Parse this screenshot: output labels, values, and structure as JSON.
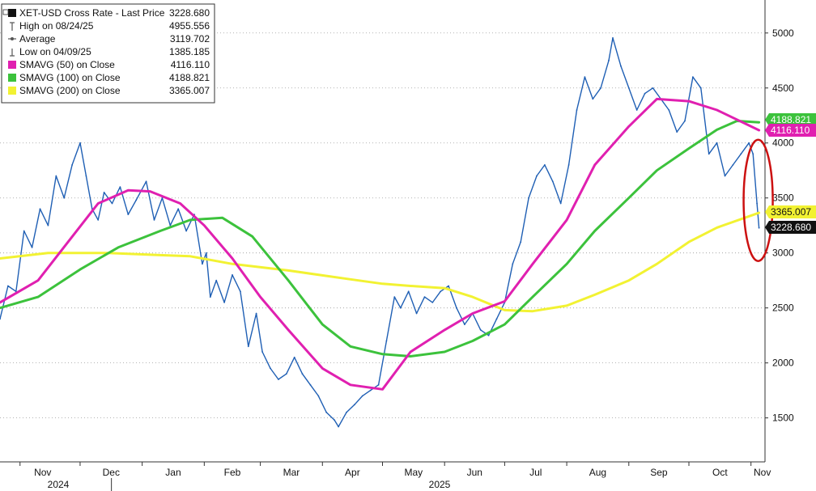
{
  "chart_data": {
    "type": "line",
    "title": "",
    "xlabel": "",
    "ylabel": "",
    "ylim": [
      1100,
      5300
    ],
    "y_ticks": [
      1500,
      2000,
      2500,
      3000,
      3500,
      4000,
      4500,
      5000
    ],
    "y_axis_side": "right",
    "grid": "horizontal dotted",
    "legend_position": "top-left",
    "x_range": [
      "2024-10-22",
      "2025-11-08"
    ],
    "month_ticks": [
      {
        "label": "Nov",
        "date": "2024-11-01"
      },
      {
        "label": "Dec",
        "date": "2024-12-01"
      },
      {
        "label": "Jan",
        "date": "2025-01-01"
      },
      {
        "label": "Feb",
        "date": "2025-02-01"
      },
      {
        "label": "Mar",
        "date": "2025-03-01"
      },
      {
        "label": "Apr",
        "date": "2025-04-01"
      },
      {
        "label": "May",
        "date": "2025-05-01"
      },
      {
        "label": "Jun",
        "date": "2025-06-01"
      },
      {
        "label": "Jul",
        "date": "2025-07-01"
      },
      {
        "label": "Aug",
        "date": "2025-08-01"
      },
      {
        "label": "Sep",
        "date": "2025-09-01"
      },
      {
        "label": "Oct",
        "date": "2025-10-01"
      },
      {
        "label": "Nov",
        "date": "2025-11-01"
      }
    ],
    "years": [
      {
        "label": "2024",
        "date": "2024-11-01"
      },
      {
        "label": "2025",
        "date": "2025-06-01"
      }
    ],
    "legend": [
      {
        "label": "XET-USD Cross Rate - Last Price",
        "value": "3228.680",
        "marker": "square",
        "color": "#111111"
      },
      {
        "label": "High on 08/24/25",
        "value": "4955.556",
        "marker": "high-icon",
        "color": "#555555"
      },
      {
        "label": "Average",
        "value": "3119.702",
        "marker": "average-icon",
        "color": "#555555"
      },
      {
        "label": "Low on 04/09/25",
        "value": "1385.185",
        "marker": "low-icon",
        "color": "#555555"
      },
      {
        "label": "SMAVG (50)  on Close",
        "value": "4116.110",
        "marker": "square",
        "color": "#e020b0"
      },
      {
        "label": "SMAVG (100)  on Close",
        "value": "4188.821",
        "marker": "square",
        "color": "#3cc23c"
      },
      {
        "label": "SMAVG (200)  on Close",
        "value": "3365.007",
        "marker": "square",
        "color": "#f2f232"
      }
    ],
    "value_tags": [
      {
        "value": 4188.821,
        "label": "4188.821",
        "color": "#3cc23c",
        "text_color": "#ffffff"
      },
      {
        "value": 4116.11,
        "label": "4116.110",
        "color": "#e020b0",
        "text_color": "#ffffff"
      },
      {
        "value": 3365.007,
        "label": "3365.007",
        "color": "#f2f232",
        "text_color": "#111111"
      },
      {
        "value": 3228.68,
        "label": "3228.680",
        "color": "#111111",
        "text_color": "#ffffff"
      }
    ],
    "annotation": {
      "type": "ellipse",
      "color": "#cc1111",
      "date": "2025-11-05",
      "y_from": 3000,
      "y_to": 4000
    },
    "series": [
      {
        "name": "XET-USD Cross Rate - Last Price",
        "color": "#1f5fb4",
        "x": [
          "2024-10-22",
          "2024-10-26",
          "2024-10-30",
          "2024-11-03",
          "2024-11-07",
          "2024-11-11",
          "2024-11-15",
          "2024-11-19",
          "2024-11-23",
          "2024-11-27",
          "2024-12-01",
          "2024-12-04",
          "2024-12-07",
          "2024-12-10",
          "2024-12-13",
          "2024-12-17",
          "2024-12-21",
          "2024-12-25",
          "2024-12-29",
          "2025-01-03",
          "2025-01-07",
          "2025-01-11",
          "2025-01-15",
          "2025-01-19",
          "2025-01-23",
          "2025-01-27",
          "2025-01-31",
          "2025-02-02",
          "2025-02-04",
          "2025-02-07",
          "2025-02-11",
          "2025-02-15",
          "2025-02-19",
          "2025-02-23",
          "2025-02-27",
          "2025-03-02",
          "2025-03-06",
          "2025-03-10",
          "2025-03-14",
          "2025-03-18",
          "2025-03-22",
          "2025-03-26",
          "2025-03-30",
          "2025-04-03",
          "2025-04-07",
          "2025-04-09",
          "2025-04-13",
          "2025-04-17",
          "2025-04-21",
          "2025-04-25",
          "2025-04-29",
          "2025-05-03",
          "2025-05-07",
          "2025-05-10",
          "2025-05-14",
          "2025-05-18",
          "2025-05-22",
          "2025-05-26",
          "2025-05-30",
          "2025-06-03",
          "2025-06-07",
          "2025-06-11",
          "2025-06-15",
          "2025-06-19",
          "2025-06-23",
          "2025-06-27",
          "2025-07-01",
          "2025-07-05",
          "2025-07-09",
          "2025-07-13",
          "2025-07-17",
          "2025-07-21",
          "2025-07-25",
          "2025-07-29",
          "2025-08-02",
          "2025-08-06",
          "2025-08-10",
          "2025-08-14",
          "2025-08-18",
          "2025-08-22",
          "2025-08-24",
          "2025-08-28",
          "2025-09-01",
          "2025-09-05",
          "2025-09-09",
          "2025-09-13",
          "2025-09-17",
          "2025-09-21",
          "2025-09-25",
          "2025-09-29",
          "2025-10-03",
          "2025-10-07",
          "2025-10-11",
          "2025-10-15",
          "2025-10-19",
          "2025-10-23",
          "2025-10-27",
          "2025-10-31",
          "2025-11-02",
          "2025-11-04",
          "2025-11-05"
        ],
        "y": [
          2400,
          2700,
          2650,
          3200,
          3050,
          3400,
          3250,
          3700,
          3500,
          3800,
          4000,
          3700,
          3400,
          3300,
          3550,
          3450,
          3600,
          3350,
          3480,
          3650,
          3300,
          3500,
          3250,
          3400,
          3200,
          3350,
          2900,
          3000,
          2600,
          2750,
          2550,
          2800,
          2650,
          2150,
          2450,
          2100,
          1950,
          1850,
          1900,
          2050,
          1900,
          1800,
          1700,
          1550,
          1480,
          1420,
          1550,
          1620,
          1700,
          1750,
          1800,
          2200,
          2600,
          2500,
          2650,
          2450,
          2600,
          2550,
          2650,
          2700,
          2500,
          2350,
          2450,
          2300,
          2250,
          2400,
          2550,
          2900,
          3100,
          3500,
          3700,
          3800,
          3650,
          3450,
          3800,
          4300,
          4600,
          4400,
          4500,
          4750,
          4955,
          4700,
          4500,
          4300,
          4450,
          4500,
          4400,
          4300,
          4100,
          4200,
          4600,
          4500,
          3900,
          4000,
          3700,
          3800,
          3900,
          4000,
          3900,
          3450,
          3228
        ]
      },
      {
        "name": "SMAVG (50)  on Close",
        "color": "#e020b0",
        "x": [
          "2024-10-22",
          "2024-11-10",
          "2024-11-25",
          "2024-12-10",
          "2024-12-25",
          "2025-01-05",
          "2025-01-20",
          "2025-02-01",
          "2025-02-15",
          "2025-03-01",
          "2025-03-15",
          "2025-04-01",
          "2025-04-15",
          "2025-05-01",
          "2025-05-15",
          "2025-06-01",
          "2025-06-15",
          "2025-07-01",
          "2025-07-15",
          "2025-08-01",
          "2025-08-15",
          "2025-09-01",
          "2025-09-15",
          "2025-10-01",
          "2025-10-15",
          "2025-11-05"
        ],
        "y": [
          2550,
          2750,
          3100,
          3450,
          3570,
          3560,
          3450,
          3250,
          2950,
          2600,
          2300,
          1950,
          1800,
          1760,
          2100,
          2300,
          2450,
          2560,
          2900,
          3300,
          3800,
          4150,
          4400,
          4380,
          4300,
          4116
        ]
      },
      {
        "name": "SMAVG (100)  on Close",
        "color": "#3cc23c",
        "x": [
          "2024-10-22",
          "2024-11-10",
          "2024-12-01",
          "2024-12-20",
          "2025-01-10",
          "2025-01-25",
          "2025-02-10",
          "2025-02-25",
          "2025-03-15",
          "2025-04-01",
          "2025-04-15",
          "2025-05-01",
          "2025-05-15",
          "2025-06-01",
          "2025-06-15",
          "2025-07-01",
          "2025-07-15",
          "2025-08-01",
          "2025-08-15",
          "2025-09-01",
          "2025-09-15",
          "2025-10-01",
          "2025-10-15",
          "2025-10-25",
          "2025-11-05"
        ],
        "y": [
          2500,
          2600,
          2850,
          3050,
          3200,
          3300,
          3320,
          3150,
          2750,
          2350,
          2150,
          2080,
          2060,
          2100,
          2200,
          2350,
          2600,
          2900,
          3200,
          3500,
          3750,
          3950,
          4120,
          4200,
          4188
        ]
      },
      {
        "name": "SMAVG (200)  on Close",
        "color": "#f2f232",
        "x": [
          "2024-10-22",
          "2024-11-15",
          "2024-12-15",
          "2025-01-10",
          "2025-01-25",
          "2025-02-15",
          "2025-03-15",
          "2025-04-15",
          "2025-05-01",
          "2025-05-15",
          "2025-06-01",
          "2025-06-15",
          "2025-07-01",
          "2025-07-15",
          "2025-08-01",
          "2025-08-15",
          "2025-09-01",
          "2025-09-15",
          "2025-10-01",
          "2025-10-15",
          "2025-11-05"
        ],
        "y": [
          2950,
          3000,
          3000,
          2980,
          2970,
          2900,
          2840,
          2760,
          2720,
          2700,
          2680,
          2600,
          2480,
          2470,
          2520,
          2620,
          2750,
          2900,
          3100,
          3230,
          3365
        ]
      }
    ]
  }
}
